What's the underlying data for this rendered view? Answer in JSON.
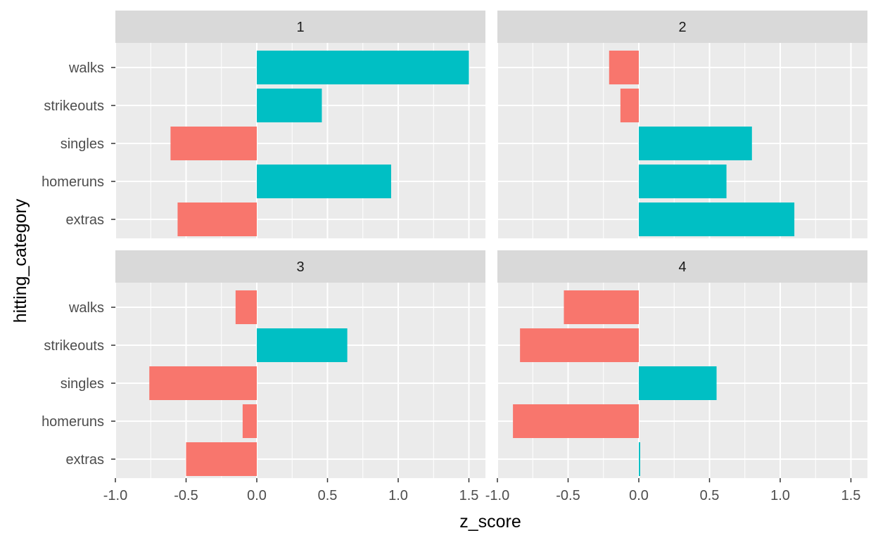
{
  "chart_data": {
    "type": "bar",
    "orientation": "horizontal",
    "facet_layout": "2x2",
    "xlabel": "z_score",
    "ylabel": "hitting_category",
    "xlim": [
      -1.0,
      1.5
    ],
    "x_ticks": [
      "-1.0",
      "-0.5",
      "0.0",
      "0.5",
      "1.0",
      "1.5"
    ],
    "x_tick_values": [
      -1.0,
      -0.5,
      0.0,
      0.5,
      1.0,
      1.5
    ],
    "categories": [
      "walks",
      "strikeouts",
      "singles",
      "homeruns",
      "extras"
    ],
    "colors": {
      "positive": "#00BFC4",
      "negative": "#F8766D"
    },
    "grid": true,
    "legend": "none",
    "panels": [
      {
        "label": "1",
        "values": [
          1.5,
          0.46,
          -0.61,
          0.95,
          -0.56
        ]
      },
      {
        "label": "2",
        "values": [
          -0.21,
          -0.13,
          0.8,
          0.62,
          1.1
        ]
      },
      {
        "label": "3",
        "values": [
          -0.15,
          0.64,
          -0.76,
          -0.1,
          -0.5
        ]
      },
      {
        "label": "4",
        "values": [
          -0.53,
          -0.84,
          0.55,
          -0.89,
          0.01
        ]
      }
    ]
  }
}
